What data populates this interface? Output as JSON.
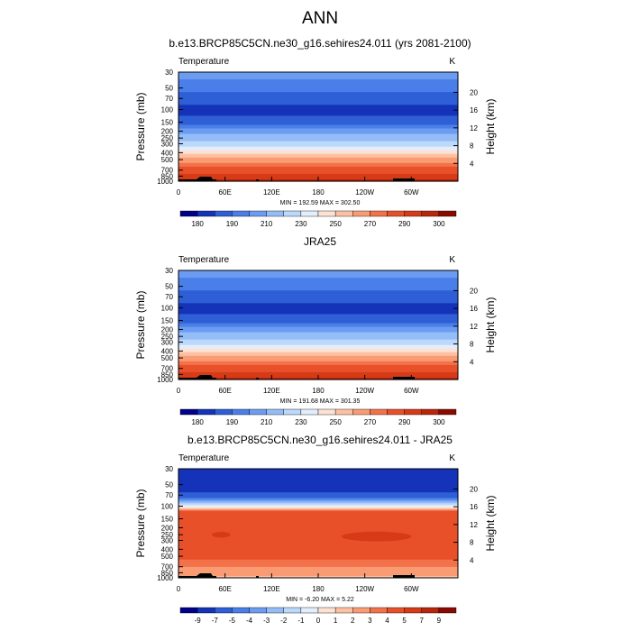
{
  "page_title": "ANN",
  "chart_data": [
    {
      "type": "heatmap",
      "title": "b.e13.BRCP85C5CN.ne30_g16.sehires24.011 (yrs 2081-2100)",
      "variable": "Temperature",
      "units": "K",
      "ylabel": "Pressure (mb)",
      "ylabel_right": "Height (km)",
      "x_ticks": [
        "0",
        "60E",
        "120E",
        "180",
        "120W",
        "60W"
      ],
      "y_ticks": [
        "30",
        "50",
        "70",
        "100",
        "150",
        "200",
        "250",
        "300",
        "400",
        "500",
        "700",
        "850",
        "1000"
      ],
      "y_right_ticks": [
        "20",
        "16",
        "12",
        "8",
        "4"
      ],
      "stats": "MIN = 192.59  MAX = 302.50",
      "colorbar_labels": [
        "180",
        "190",
        "210",
        "230",
        "250",
        "270",
        "290",
        "300"
      ],
      "colorbar_colors": [
        "#00008b",
        "#1433b8",
        "#2e5fd6",
        "#4a7ee8",
        "#6b9cf2",
        "#94bdf8",
        "#bcd8fb",
        "#e2eefd",
        "#fde1d3",
        "#fcc0a2",
        "#f99b73",
        "#f4724a",
        "#e8502a",
        "#d73a17",
        "#b8260b",
        "#8b0a00"
      ],
      "profile": [
        {
          "p": 30,
          "level": 4
        },
        {
          "p": 70,
          "level": 2
        },
        {
          "p": 100,
          "level": 1
        },
        {
          "p": 150,
          "level": 2
        },
        {
          "p": 200,
          "level": 4
        },
        {
          "p": 250,
          "level": 5
        },
        {
          "p": 300,
          "level": 6
        },
        {
          "p": 400,
          "level": 8
        },
        {
          "p": 500,
          "level": 10
        },
        {
          "p": 700,
          "level": 12
        },
        {
          "p": 850,
          "level": 13
        },
        {
          "p": 1000,
          "level": 14
        }
      ],
      "features": []
    },
    {
      "type": "heatmap",
      "title": "JRA25",
      "variable": "Temperature",
      "units": "K",
      "ylabel": "Pressure (mb)",
      "ylabel_right": "Height (km)",
      "x_ticks": [
        "0",
        "60E",
        "120E",
        "180",
        "120W",
        "60W"
      ],
      "y_ticks": [
        "30",
        "50",
        "70",
        "100",
        "150",
        "200",
        "250",
        "300",
        "400",
        "500",
        "700",
        "850",
        "1000"
      ],
      "y_right_ticks": [
        "20",
        "16",
        "12",
        "8",
        "4"
      ],
      "stats": "MIN = 191.68  MAX = 301.35",
      "colorbar_labels": [
        "180",
        "190",
        "210",
        "230",
        "250",
        "270",
        "290",
        "300"
      ],
      "colorbar_colors": [
        "#00008b",
        "#1433b8",
        "#2e5fd6",
        "#4a7ee8",
        "#6b9cf2",
        "#94bdf8",
        "#bcd8fb",
        "#e2eefd",
        "#fde1d3",
        "#fcc0a2",
        "#f99b73",
        "#f4724a",
        "#e8502a",
        "#d73a17",
        "#b8260b",
        "#8b0a00"
      ],
      "profile": [
        {
          "p": 30,
          "level": 4
        },
        {
          "p": 70,
          "level": 2
        },
        {
          "p": 100,
          "level": 1
        },
        {
          "p": 150,
          "level": 2
        },
        {
          "p": 200,
          "level": 4
        },
        {
          "p": 250,
          "level": 5
        },
        {
          "p": 300,
          "level": 6
        },
        {
          "p": 400,
          "level": 8
        },
        {
          "p": 500,
          "level": 10
        },
        {
          "p": 700,
          "level": 12
        },
        {
          "p": 850,
          "level": 13
        },
        {
          "p": 1000,
          "level": 14
        }
      ],
      "features": []
    },
    {
      "type": "heatmap",
      "title": "b.e13.BRCP85C5CN.ne30_g16.sehires24.011 - JRA25",
      "variable": "Temperature",
      "units": "K",
      "ylabel": "Pressure (mb)",
      "ylabel_right": "Height (km)",
      "x_ticks": [
        "0",
        "60E",
        "120E",
        "180",
        "120W",
        "60W"
      ],
      "y_ticks": [
        "30",
        "50",
        "70",
        "100",
        "150",
        "200",
        "250",
        "300",
        "400",
        "500",
        "700",
        "850",
        "1000"
      ],
      "y_right_ticks": [
        "20",
        "16",
        "12",
        "8",
        "4"
      ],
      "stats": "MIN =  -6.20  MAX =   5.22",
      "colorbar_labels": [
        "-9",
        "-7",
        "-5",
        "-4",
        "-3",
        "-2",
        "-1",
        "0",
        "1",
        "2",
        "3",
        "4",
        "5",
        "7",
        "9"
      ],
      "colorbar_colors": [
        "#00008b",
        "#1433b8",
        "#2e5fd6",
        "#4a7ee8",
        "#6b9cf2",
        "#94bdf8",
        "#bcd8fb",
        "#e2eefd",
        "#fde1d3",
        "#fcc0a2",
        "#f99b73",
        "#f4724a",
        "#e8502a",
        "#d73a17",
        "#b8260b",
        "#8b0a00"
      ],
      "profile": [
        {
          "p": 30,
          "level": 1
        },
        {
          "p": 60,
          "level": 1
        },
        {
          "p": 80,
          "level": 3
        },
        {
          "p": 100,
          "level": 7
        },
        {
          "p": 120,
          "level": 12
        },
        {
          "p": 150,
          "level": 12
        },
        {
          "p": 500,
          "level": 12
        },
        {
          "p": 600,
          "level": 11
        },
        {
          "p": 850,
          "level": 10
        },
        {
          "p": 1000,
          "level": 9
        }
      ],
      "features": [
        {
          "lon": 255,
          "p": 265,
          "lon_radius": 45,
          "p_radius": 45,
          "level": 13
        },
        {
          "lon": 55,
          "p": 250,
          "lon_radius": 12,
          "p_radius": 25,
          "level": 13
        }
      ]
    }
  ]
}
